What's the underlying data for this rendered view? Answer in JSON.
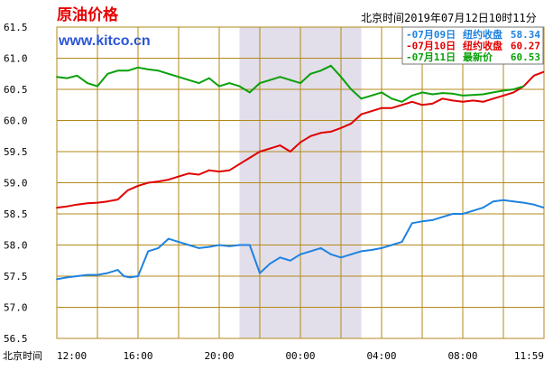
{
  "title": "原油价格",
  "timestamp": "北京时间2019年07月12日10时11分",
  "brand": "www.kitco.cn",
  "colors": {
    "blue": "#1e82e0",
    "red": "#e00000",
    "green": "#0aa00a",
    "grid": "#b38a18",
    "band": "#e2deea"
  },
  "chart_data": {
    "type": "line",
    "title": "原油价格",
    "xlabel": "北京时间",
    "ylabel": "",
    "ylim": [
      56.5,
      61.5
    ],
    "x_ticks": [
      "12:00",
      "16:00",
      "20:00",
      "00:00",
      "04:00",
      "08:00",
      "11:59"
    ],
    "y_ticks": [
      "61.5",
      "61.0",
      "60.5",
      "60.0",
      "59.5",
      "59.0",
      "58.5",
      "58.0",
      "57.5",
      "57.0",
      "56.5"
    ],
    "grid": true,
    "legend_position": "top-right",
    "legend": [
      {
        "date": "07月09日",
        "label": "纽约收盘",
        "value": "58.34",
        "color": "#1e82e0"
      },
      {
        "date": "07月10日",
        "label": "纽约收盘",
        "value": "60.27",
        "color": "#e00000"
      },
      {
        "date": "07月11日",
        "label": "最新价",
        "value": "60.53",
        "color": "#0aa00a"
      }
    ],
    "series": [
      {
        "name": "07月09日",
        "color": "#1e82e0",
        "x": [
          0,
          0.5,
          1,
          1.5,
          2,
          2.5,
          3,
          3.3,
          3.6,
          4,
          4.5,
          5,
          5.5,
          6,
          6.5,
          7,
          7.5,
          8,
          8.5,
          9,
          9.5,
          10,
          10.5,
          11,
          11.5,
          12,
          12.5,
          13,
          13.5,
          14,
          14.5,
          15,
          15.5,
          16,
          16.5,
          17,
          17.5,
          18,
          18.5,
          19,
          19.5,
          20,
          20.5,
          21,
          21.5,
          22,
          22.5,
          23,
          23.5,
          23.98
        ],
        "y": [
          57.45,
          57.48,
          57.5,
          57.52,
          57.52,
          57.55,
          57.6,
          57.5,
          57.48,
          57.5,
          57.9,
          57.95,
          58.1,
          58.05,
          58.0,
          57.95,
          57.97,
          58.0,
          57.98,
          58.0,
          58.0,
          57.55,
          57.7,
          57.8,
          57.75,
          57.85,
          57.9,
          57.95,
          57.85,
          57.8,
          57.85,
          57.9,
          57.92,
          57.95,
          58.0,
          58.05,
          58.35,
          58.38,
          58.4,
          58.45,
          58.5,
          58.5,
          58.55,
          58.6,
          58.7,
          58.72,
          58.7,
          58.68,
          58.65,
          58.6
        ]
      },
      {
        "name": "07月10日",
        "color": "#e00000",
        "x": [
          0,
          0.5,
          1,
          1.5,
          2,
          2.5,
          3,
          3.5,
          4,
          4.5,
          5,
          5.5,
          6,
          6.5,
          7,
          7.5,
          8,
          8.5,
          9,
          9.5,
          10,
          10.5,
          11,
          11.5,
          12,
          12.5,
          13,
          13.5,
          14,
          14.5,
          15,
          15.5,
          16,
          16.5,
          17,
          17.5,
          18,
          18.5,
          19,
          19.5,
          20,
          20.5,
          21,
          21.5,
          22,
          22.5,
          23,
          23.5,
          23.98
        ],
        "y": [
          58.6,
          58.62,
          58.65,
          58.67,
          58.68,
          58.7,
          58.73,
          58.88,
          58.95,
          59.0,
          59.02,
          59.05,
          59.1,
          59.15,
          59.13,
          59.2,
          59.18,
          59.2,
          59.3,
          59.4,
          59.5,
          59.55,
          59.6,
          59.5,
          59.65,
          59.75,
          59.8,
          59.82,
          59.88,
          59.95,
          60.1,
          60.15,
          60.2,
          60.2,
          60.25,
          60.3,
          60.25,
          60.27,
          60.35,
          60.32,
          60.3,
          60.32,
          60.3,
          60.35,
          60.4,
          60.45,
          60.55,
          60.72,
          60.78
        ]
      },
      {
        "name": "07月11日",
        "color": "#0aa00a",
        "x": [
          0,
          0.5,
          1,
          1.5,
          2,
          2.5,
          3,
          3.5,
          4,
          4.5,
          5,
          5.5,
          6,
          6.5,
          7,
          7.5,
          8,
          8.5,
          9,
          9.5,
          10,
          10.5,
          11,
          11.5,
          12,
          12.5,
          13,
          13.5,
          14,
          14.5,
          15,
          15.5,
          16,
          16.5,
          17,
          17.5,
          18,
          18.5,
          19,
          19.5,
          20,
          20.5,
          21,
          21.5,
          22,
          22.5,
          23
        ],
        "y": [
          60.7,
          60.68,
          60.72,
          60.6,
          60.55,
          60.75,
          60.8,
          60.8,
          60.85,
          60.82,
          60.8,
          60.75,
          60.7,
          60.65,
          60.6,
          60.68,
          60.55,
          60.6,
          60.55,
          60.45,
          60.6,
          60.65,
          60.7,
          60.65,
          60.6,
          60.75,
          60.8,
          60.88,
          60.7,
          60.5,
          60.35,
          60.4,
          60.45,
          60.35,
          60.3,
          60.4,
          60.45,
          60.42,
          60.44,
          60.43,
          60.4,
          60.41,
          60.42,
          60.45,
          60.48,
          60.5,
          60.55
        ]
      }
    ]
  }
}
